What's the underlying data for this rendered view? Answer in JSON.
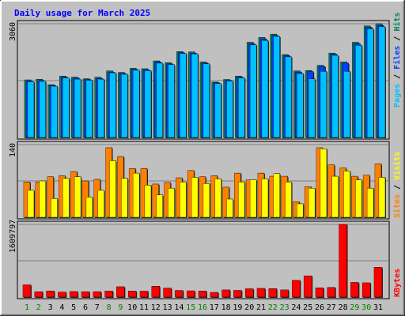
{
  "chart_data": {
    "type": "bar",
    "title": "Daily usage for March 2025",
    "categories": [
      "1",
      "2",
      "3",
      "4",
      "5",
      "6",
      "7",
      "8",
      "9",
      "10",
      "11",
      "12",
      "13",
      "14",
      "15",
      "16",
      "17",
      "18",
      "19",
      "20",
      "21",
      "22",
      "23",
      "24",
      "25",
      "26",
      "27",
      "28",
      "29",
      "30",
      "31"
    ],
    "weekend_days": [
      "1",
      "2",
      "8",
      "9",
      "15",
      "16",
      "22",
      "23",
      "29",
      "30"
    ],
    "panels": [
      {
        "id": "top",
        "ymax_label": "3060",
        "ylim": [
          0,
          3060
        ],
        "grid": true,
        "legend": [
          "Pages",
          "Files",
          "Hits"
        ],
        "series": [
          {
            "name": "Hits",
            "color": "#00805c",
            "values": [
              1550,
              1565,
              1420,
              1650,
              1620,
              1580,
              1620,
              1790,
              1750,
              1860,
              1850,
              2060,
              2010,
              2310,
              2300,
              2030,
              1490,
              1560,
              1650,
              2560,
              2690,
              2780,
              2230,
              1790,
              1800,
              1940,
              2270,
              2030,
              2560,
              3000,
              3060
            ]
          },
          {
            "name": "Files",
            "color": "#0040ff",
            "values": [
              1520,
              1530,
              1400,
              1620,
              1600,
              1560,
              1590,
              1760,
              1720,
              1830,
              1820,
              2030,
              1980,
              2280,
              2270,
              2000,
              1470,
              1540,
              1620,
              2520,
              2650,
              2740,
              2200,
              1760,
              1770,
              1910,
              2240,
              2000,
              2520,
              2960,
              3010
            ]
          },
          {
            "name": "Pages",
            "color": "#00c0ff",
            "values": [
              1500,
              1510,
              1380,
              1600,
              1570,
              1540,
              1570,
              1740,
              1700,
              1810,
              1800,
              2000,
              1960,
              2260,
              2250,
              1980,
              1450,
              1520,
              1600,
              2490,
              2610,
              2720,
              2170,
              1720,
              1580,
              1780,
              2210,
              1780,
              2480,
              2920,
              2980
            ]
          }
        ]
      },
      {
        "id": "middle",
        "ymax_label": "140",
        "ylim": [
          0,
          140
        ],
        "grid": true,
        "legend": [
          "Sites",
          "Visits"
        ],
        "series": [
          {
            "name": "Visits",
            "color": "#ff8000",
            "values": [
              68,
              68,
              78,
              80,
              88,
              70,
              73,
              134,
              117,
              94,
              94,
              64,
              67,
              76,
              90,
              78,
              80,
              58,
              85,
              72,
              85,
              79,
              79,
              30,
              59,
              134,
              101,
              95,
              79,
              81,
              103
            ]
          },
          {
            "name": "Sites",
            "color": "#ffff00",
            "values": [
              52,
              70,
              36,
              75,
              78,
              39,
              52,
              109,
              75,
              85,
              62,
              43,
              56,
              68,
              77,
              65,
              74,
              35,
              68,
              72,
              74,
              84,
              68,
              26,
              56,
              132,
              79,
              89,
              72,
              56,
              77
            ]
          }
        ]
      },
      {
        "id": "bottom",
        "ymax_label": "1609797",
        "ylim": [
          0,
          1609797
        ],
        "grid": true,
        "legend": [
          "KBytes"
        ],
        "series": [
          {
            "name": "KBytes",
            "color": "#ff0000",
            "values": [
              271000,
              118000,
              136000,
              110000,
              123000,
              119000,
              120000,
              132000,
              229000,
              133000,
              131000,
              239000,
              197000,
              147000,
              139000,
              134000,
              104000,
              159000,
              148000,
              184000,
              193000,
              187000,
              159000,
              371000,
              470000,
              205000,
              213000,
              1609797,
              324000,
              316000,
              659000
            ]
          }
        ]
      }
    ]
  }
}
